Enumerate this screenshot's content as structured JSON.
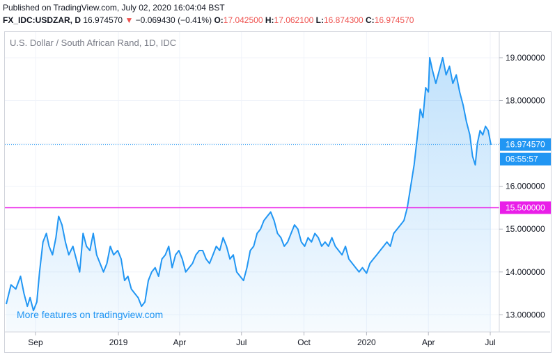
{
  "header": {
    "published": "Published on TradingView.com, July 02, 2020 16:04:04 BST",
    "symbol": "FX_IDC:USDZAR, D",
    "last": "16.974570",
    "change_arrow": "▼",
    "change": "−0.069430 (−0.41%)",
    "o_label": "O:",
    "o_value": "17.042500",
    "h_label": "H:",
    "h_value": "17.062100",
    "l_label": "L:",
    "l_value": "16.874300",
    "c_label": "C:",
    "c_value": "16.974570"
  },
  "chart_data": {
    "type": "area",
    "title": "U.S. Dollar / South African Rand, 1D, IDC",
    "xlabel": "",
    "ylabel": "",
    "x_range": [
      "2018-07-20",
      "2020-07-02"
    ],
    "ylim": [
      12.6,
      19.6
    ],
    "x_tick_labels": [
      {
        "label": "Sep",
        "date": "2018-09-01"
      },
      {
        "label": "2019",
        "date": "2019-01-01"
      },
      {
        "label": "Apr",
        "date": "2019-04-01"
      },
      {
        "label": "Jul",
        "date": "2019-07-01"
      },
      {
        "label": "Oct",
        "date": "2019-10-01"
      },
      {
        "label": "2020",
        "date": "2020-01-01"
      },
      {
        "label": "Apr",
        "date": "2020-04-01"
      },
      {
        "label": "Jul",
        "date": "2020-07-01"
      }
    ],
    "y_tick_labels": [
      "13.000000",
      "14.000000",
      "15.000000",
      "16.000000",
      "17.000000",
      "18.000000",
      "19.000000"
    ],
    "y_ticks": [
      13,
      14,
      15,
      16,
      17,
      18,
      19
    ],
    "series": [
      {
        "points": [
          [
            "2018-07-20",
            13.25
          ],
          [
            "2018-07-27",
            13.7
          ],
          [
            "2018-08-03",
            13.6
          ],
          [
            "2018-08-10",
            13.9
          ],
          [
            "2018-08-15",
            13.5
          ],
          [
            "2018-08-20",
            13.2
          ],
          [
            "2018-08-24",
            13.4
          ],
          [
            "2018-08-29",
            13.1
          ],
          [
            "2018-09-03",
            13.3
          ],
          [
            "2018-09-07",
            14.0
          ],
          [
            "2018-09-12",
            14.7
          ],
          [
            "2018-09-17",
            14.9
          ],
          [
            "2018-09-21",
            14.6
          ],
          [
            "2018-09-26",
            14.4
          ],
          [
            "2018-10-01",
            14.8
          ],
          [
            "2018-10-05",
            15.3
          ],
          [
            "2018-10-10",
            15.1
          ],
          [
            "2018-10-15",
            14.7
          ],
          [
            "2018-10-20",
            14.4
          ],
          [
            "2018-10-26",
            14.6
          ],
          [
            "2018-10-31",
            14.3
          ],
          [
            "2018-11-05",
            14.0
          ],
          [
            "2018-11-10",
            14.9
          ],
          [
            "2018-11-15",
            14.6
          ],
          [
            "2018-11-20",
            14.5
          ],
          [
            "2018-11-25",
            14.9
          ],
          [
            "2018-11-30",
            14.4
          ],
          [
            "2018-12-05",
            14.2
          ],
          [
            "2018-12-10",
            14.0
          ],
          [
            "2018-12-15",
            14.2
          ],
          [
            "2018-12-20",
            14.6
          ],
          [
            "2018-12-25",
            14.4
          ],
          [
            "2018-12-31",
            14.5
          ],
          [
            "2019-01-05",
            14.3
          ],
          [
            "2019-01-10",
            13.8
          ],
          [
            "2019-01-15",
            13.9
          ],
          [
            "2019-01-20",
            13.6
          ],
          [
            "2019-01-25",
            13.5
          ],
          [
            "2019-01-30",
            13.4
          ],
          [
            "2019-02-04",
            13.2
          ],
          [
            "2019-02-09",
            13.3
          ],
          [
            "2019-02-14",
            13.8
          ],
          [
            "2019-02-19",
            14.0
          ],
          [
            "2019-02-24",
            14.1
          ],
          [
            "2019-03-01",
            13.9
          ],
          [
            "2019-03-06",
            14.3
          ],
          [
            "2019-03-11",
            14.4
          ],
          [
            "2019-03-16",
            14.6
          ],
          [
            "2019-03-21",
            14.1
          ],
          [
            "2019-03-26",
            14.4
          ],
          [
            "2019-03-31",
            14.5
          ],
          [
            "2019-04-05",
            14.3
          ],
          [
            "2019-04-10",
            14.0
          ],
          [
            "2019-04-15",
            14.1
          ],
          [
            "2019-04-20",
            14.2
          ],
          [
            "2019-04-25",
            14.4
          ],
          [
            "2019-04-30",
            14.5
          ],
          [
            "2019-05-05",
            14.5
          ],
          [
            "2019-05-10",
            14.3
          ],
          [
            "2019-05-15",
            14.2
          ],
          [
            "2019-05-20",
            14.4
          ],
          [
            "2019-05-25",
            14.6
          ],
          [
            "2019-05-30",
            14.5
          ],
          [
            "2019-06-04",
            14.8
          ],
          [
            "2019-06-09",
            14.6
          ],
          [
            "2019-06-14",
            14.3
          ],
          [
            "2019-06-19",
            14.4
          ],
          [
            "2019-06-24",
            14.0
          ],
          [
            "2019-06-29",
            13.9
          ],
          [
            "2019-07-04",
            13.8
          ],
          [
            "2019-07-09",
            14.1
          ],
          [
            "2019-07-14",
            14.5
          ],
          [
            "2019-07-19",
            14.6
          ],
          [
            "2019-07-24",
            14.9
          ],
          [
            "2019-07-29",
            15.0
          ],
          [
            "2019-08-03",
            15.2
          ],
          [
            "2019-08-08",
            15.3
          ],
          [
            "2019-08-13",
            15.4
          ],
          [
            "2019-08-18",
            15.2
          ],
          [
            "2019-08-23",
            14.9
          ],
          [
            "2019-08-28",
            14.8
          ],
          [
            "2019-09-02",
            14.6
          ],
          [
            "2019-09-07",
            14.7
          ],
          [
            "2019-09-12",
            14.9
          ],
          [
            "2019-09-17",
            15.1
          ],
          [
            "2019-09-22",
            15.0
          ],
          [
            "2019-09-27",
            14.7
          ],
          [
            "2019-10-02",
            14.6
          ],
          [
            "2019-10-07",
            14.8
          ],
          [
            "2019-10-12",
            14.7
          ],
          [
            "2019-10-17",
            14.9
          ],
          [
            "2019-10-22",
            14.8
          ],
          [
            "2019-10-27",
            14.6
          ],
          [
            "2019-11-01",
            14.7
          ],
          [
            "2019-11-06",
            14.6
          ],
          [
            "2019-11-11",
            14.8
          ],
          [
            "2019-11-16",
            14.6
          ],
          [
            "2019-11-21",
            14.5
          ],
          [
            "2019-11-26",
            14.4
          ],
          [
            "2019-12-01",
            14.6
          ],
          [
            "2019-12-06",
            14.3
          ],
          [
            "2019-12-11",
            14.2
          ],
          [
            "2019-12-16",
            14.1
          ],
          [
            "2019-12-21",
            14.0
          ],
          [
            "2019-12-26",
            14.1
          ],
          [
            "2020-01-01",
            13.97
          ],
          [
            "2020-01-06",
            14.2
          ],
          [
            "2020-01-11",
            14.3
          ],
          [
            "2020-01-16",
            14.4
          ],
          [
            "2020-01-21",
            14.5
          ],
          [
            "2020-01-26",
            14.6
          ],
          [
            "2020-01-31",
            14.7
          ],
          [
            "2020-02-05",
            14.6
          ],
          [
            "2020-02-10",
            14.9
          ],
          [
            "2020-02-15",
            15.0
          ],
          [
            "2020-02-20",
            15.1
          ],
          [
            "2020-02-25",
            15.2
          ],
          [
            "2020-03-01",
            15.5
          ],
          [
            "2020-03-06",
            16.0
          ],
          [
            "2020-03-11",
            16.5
          ],
          [
            "2020-03-16",
            17.2
          ],
          [
            "2020-03-20",
            17.8
          ],
          [
            "2020-03-24",
            17.6
          ],
          [
            "2020-03-28",
            18.3
          ],
          [
            "2020-04-01",
            18.2
          ],
          [
            "2020-04-03",
            19.0
          ],
          [
            "2020-04-07",
            18.7
          ],
          [
            "2020-04-12",
            18.4
          ],
          [
            "2020-04-17",
            18.7
          ],
          [
            "2020-04-22",
            19.0
          ],
          [
            "2020-04-27",
            18.6
          ],
          [
            "2020-05-02",
            18.8
          ],
          [
            "2020-05-07",
            18.4
          ],
          [
            "2020-05-12",
            18.6
          ],
          [
            "2020-05-17",
            18.2
          ],
          [
            "2020-05-22",
            17.9
          ],
          [
            "2020-05-27",
            17.5
          ],
          [
            "2020-06-01",
            17.2
          ],
          [
            "2020-06-05",
            16.7
          ],
          [
            "2020-06-09",
            16.5
          ],
          [
            "2020-06-12",
            17.0
          ],
          [
            "2020-06-16",
            17.3
          ],
          [
            "2020-06-20",
            17.2
          ],
          [
            "2020-06-24",
            17.4
          ],
          [
            "2020-06-28",
            17.3
          ],
          [
            "2020-07-02",
            16.97
          ]
        ]
      }
    ],
    "annotations": {
      "current_price": {
        "value": 16.97457,
        "label": "16.974570",
        "countdown": "06:55:57"
      },
      "horizontal_line": {
        "value": 15.5,
        "label": "15.500000"
      },
      "watermark": "More features on tradingview.com"
    },
    "grid": true,
    "colors": {
      "line": "#2196f3",
      "area_fill": "#2196f3",
      "price_line": "#2196f3",
      "horizontal_line": "#e91ee8",
      "watermark": "#2196f3",
      "change_down": "#ef5350"
    }
  }
}
